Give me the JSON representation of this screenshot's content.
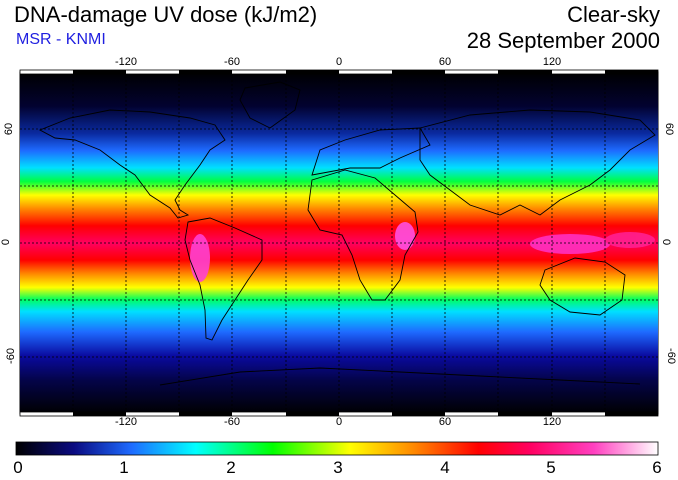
{
  "header": {
    "title": "DNA-damage UV dose (kJ/m2)",
    "subtitle": "MSR - KNMI",
    "condition": "Clear-sky",
    "date": "28 September 2000"
  },
  "map": {
    "projection": "equirectangular",
    "lon_ticks": [
      "-120",
      "-60",
      "0",
      "60",
      "120"
    ],
    "lat_ticks": [
      "60",
      "0",
      "-60"
    ],
    "colors": {
      "grid_line": "#000000",
      "coastline": "#000000"
    }
  },
  "colorbar": {
    "min": 0,
    "max": 6,
    "labels": [
      "0",
      "1",
      "2",
      "3",
      "4",
      "5",
      "6"
    ],
    "colors": [
      "#000000",
      "#0a0aa0",
      "#1e6bff",
      "#00ffff",
      "#00ff00",
      "#ffff00",
      "#ff8800",
      "#ff0000",
      "#ff0060",
      "#ff40c0",
      "#ffb0f0",
      "#ffffff"
    ]
  }
}
